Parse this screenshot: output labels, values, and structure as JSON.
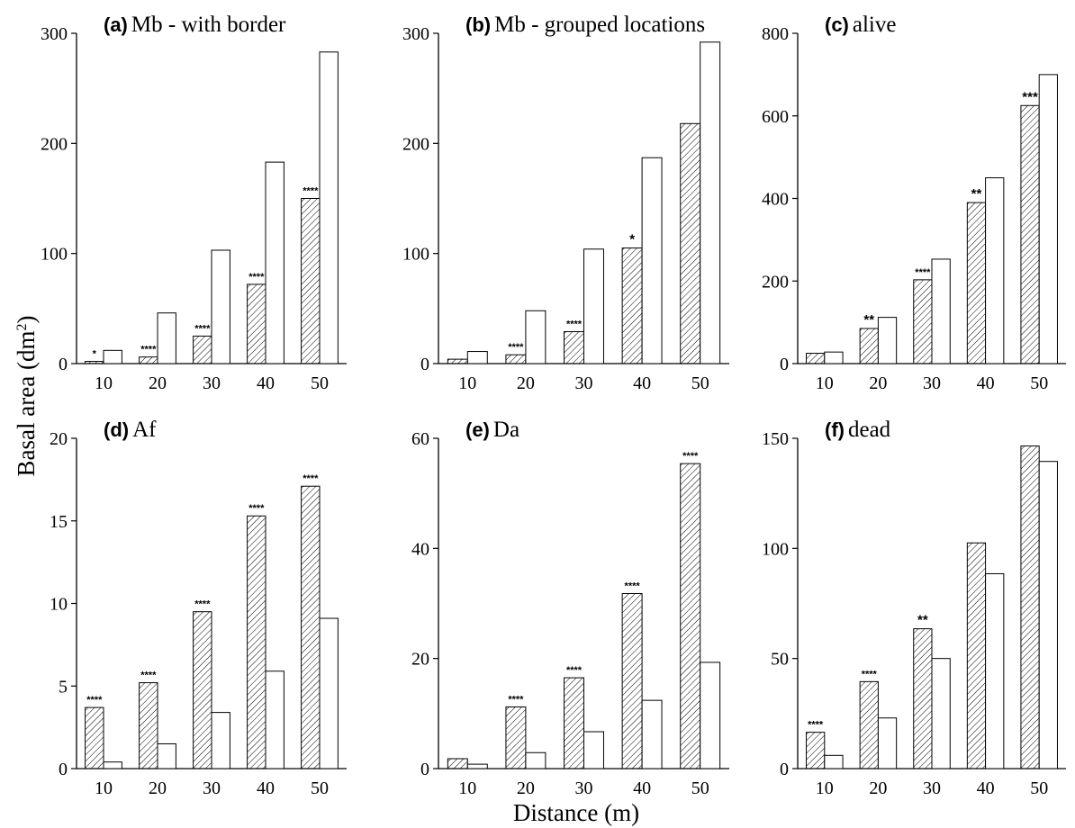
{
  "figure": {
    "ylabel_main": "Basal area (dm",
    "ylabel_sup": "2",
    "ylabel_close": ")",
    "xlabel": "Distance (m)"
  },
  "chart_data": [
    {
      "type": "bar",
      "letter": "(a)",
      "title": "Mb - with border",
      "categories": [
        "10",
        "20",
        "30",
        "40",
        "50"
      ],
      "series": [
        {
          "pattern": "hatched",
          "values": [
            2,
            6,
            25,
            72,
            150
          ]
        },
        {
          "pattern": "open",
          "values": [
            12,
            46,
            103,
            183,
            283
          ]
        }
      ],
      "significance": [
        "*",
        "****",
        "****",
        "****",
        "****"
      ],
      "ylim": [
        0,
        300
      ],
      "yticks": [
        0,
        100,
        200,
        300
      ]
    },
    {
      "type": "bar",
      "letter": "(b)",
      "title": "Mb - grouped locations",
      "categories": [
        "10",
        "20",
        "30",
        "40",
        "50"
      ],
      "series": [
        {
          "pattern": "hatched",
          "values": [
            4,
            8,
            29,
            105,
            218
          ]
        },
        {
          "pattern": "open",
          "values": [
            11,
            48,
            104,
            187,
            292
          ]
        }
      ],
      "significance": [
        "",
        "****",
        "****",
        "*",
        ""
      ],
      "ylim": [
        0,
        300
      ],
      "yticks": [
        0,
        100,
        200,
        300
      ]
    },
    {
      "type": "bar",
      "letter": "(c)",
      "title": "alive",
      "categories": [
        "10",
        "20",
        "30",
        "40",
        "50"
      ],
      "series": [
        {
          "pattern": "hatched",
          "values": [
            25,
            85,
            203,
            390,
            625
          ]
        },
        {
          "pattern": "open",
          "values": [
            28,
            112,
            253,
            450,
            700
          ]
        }
      ],
      "significance": [
        "",
        "**",
        "****",
        "**",
        "***"
      ],
      "ylim": [
        0,
        800
      ],
      "yticks": [
        0,
        200,
        400,
        600,
        800
      ]
    },
    {
      "type": "bar",
      "letter": "(d)",
      "title": "Af",
      "categories": [
        "10",
        "20",
        "30",
        "40",
        "50"
      ],
      "series": [
        {
          "pattern": "hatched",
          "values": [
            3.7,
            5.2,
            9.5,
            15.3,
            17.1
          ]
        },
        {
          "pattern": "open",
          "values": [
            0.4,
            1.5,
            3.4,
            5.9,
            9.1
          ]
        }
      ],
      "significance": [
        "****",
        "****",
        "****",
        "****",
        "****"
      ],
      "ylim": [
        0,
        20
      ],
      "yticks": [
        0,
        5,
        10,
        15,
        20
      ]
    },
    {
      "type": "bar",
      "letter": "(e)",
      "title": "Da",
      "categories": [
        "10",
        "20",
        "30",
        "40",
        "50"
      ],
      "series": [
        {
          "pattern": "hatched",
          "values": [
            1.8,
            11.2,
            16.5,
            31.8,
            55.4
          ]
        },
        {
          "pattern": "open",
          "values": [
            0.8,
            2.9,
            6.7,
            12.4,
            19.3
          ]
        }
      ],
      "significance": [
        "",
        "****",
        "****",
        "****",
        "****"
      ],
      "ylim": [
        0,
        60
      ],
      "yticks": [
        0,
        20,
        40,
        60
      ]
    },
    {
      "type": "bar",
      "letter": "(f)",
      "title": "dead",
      "categories": [
        "10",
        "20",
        "30",
        "40",
        "50"
      ],
      "series": [
        {
          "pattern": "hatched",
          "values": [
            16.5,
            39.5,
            63.5,
            102.5,
            146.5
          ]
        },
        {
          "pattern": "open",
          "values": [
            6,
            23,
            50,
            88.5,
            139.5
          ]
        }
      ],
      "significance": [
        "****",
        "****",
        "**",
        "",
        ""
      ],
      "ylim": [
        0,
        150
      ],
      "yticks": [
        0,
        50,
        100,
        150
      ]
    }
  ]
}
